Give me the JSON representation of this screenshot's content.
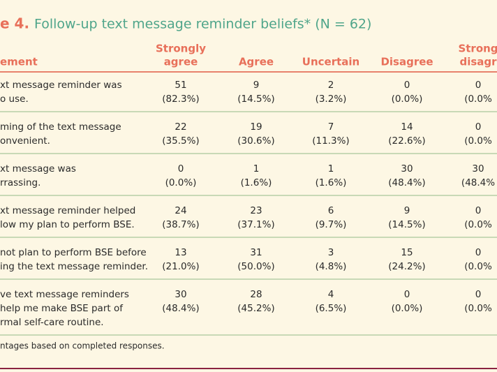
{
  "title": {
    "label": "e 4.",
    "text": "Follow-up text message reminder beliefs* (N = 62)"
  },
  "table": {
    "header": {
      "statement": "ement",
      "columns": [
        [
          "Strongly",
          "agree"
        ],
        [
          "Agree"
        ],
        [
          "Uncertain"
        ],
        [
          "Disagree"
        ],
        [
          "Strong",
          "disagr"
        ]
      ]
    },
    "rows": [
      {
        "statement": [
          "xt message reminder was",
          "o use."
        ],
        "cells": [
          [
            "51",
            "(82.3%)"
          ],
          [
            "9",
            "(14.5%)"
          ],
          [
            "2",
            "(3.2%)"
          ],
          [
            "0",
            "(0.0%)"
          ],
          [
            "0",
            "(0.0%"
          ]
        ]
      },
      {
        "statement": [
          "ming of the text message",
          "onvenient."
        ],
        "cells": [
          [
            "22",
            "(35.5%)"
          ],
          [
            "19",
            "(30.6%)"
          ],
          [
            "7",
            "(11.3%)"
          ],
          [
            "14",
            "(22.6%)"
          ],
          [
            "0",
            "(0.0%"
          ]
        ]
      },
      {
        "statement": [
          "xt message was",
          "rrassing."
        ],
        "cells": [
          [
            "0",
            "(0.0%)"
          ],
          [
            "1",
            "(1.6%)"
          ],
          [
            "1",
            "(1.6%)"
          ],
          [
            "30",
            "(48.4%)"
          ],
          [
            "30",
            "(48.4%"
          ]
        ]
      },
      {
        "statement": [
          "xt message reminder helped",
          "low my plan to perform BSE."
        ],
        "cells": [
          [
            "24",
            "(38.7%)"
          ],
          [
            "23",
            "(37.1%)"
          ],
          [
            "6",
            "(9.7%)"
          ],
          [
            "9",
            "(14.5%)"
          ],
          [
            "0",
            "(0.0%"
          ]
        ]
      },
      {
        "statement": [
          "not plan to perform BSE before",
          "ing the text message reminder."
        ],
        "cells": [
          [
            "13",
            "(21.0%)"
          ],
          [
            "31",
            "(50.0%)"
          ],
          [
            "3",
            "(4.8%)"
          ],
          [
            "15",
            "(24.2%)"
          ],
          [
            "0",
            "(0.0%"
          ]
        ]
      },
      {
        "statement": [
          "ve text message reminders",
          " help me make BSE part of",
          "rmal self-care routine."
        ],
        "cells": [
          [
            "30",
            "(48.4%)"
          ],
          [
            "28",
            "(45.2%)"
          ],
          [
            "4",
            "(6.5%)"
          ],
          [
            "0",
            "(0.0%)"
          ],
          [
            "0",
            "(0.0%"
          ]
        ]
      }
    ],
    "footnote": "ntages based on completed responses."
  }
}
